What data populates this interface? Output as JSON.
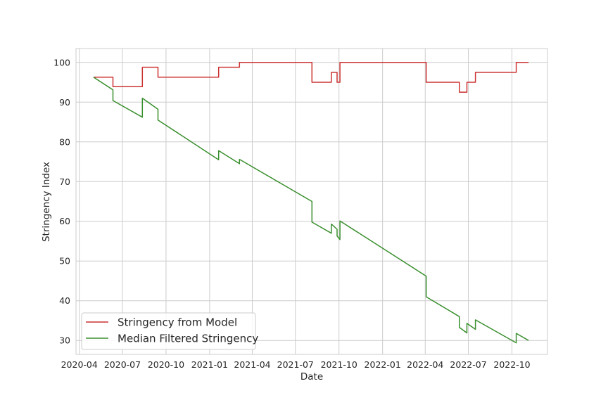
{
  "chart_data": {
    "type": "line",
    "title": "",
    "xlabel": "Date",
    "ylabel": "Stringency Index",
    "x_ticks": [
      "2020-04",
      "2020-07",
      "2020-10",
      "2021-01",
      "2021-04",
      "2021-07",
      "2021-10",
      "2022-01",
      "2022-04",
      "2022-07",
      "2022-10"
    ],
    "y_ticks": [
      30,
      40,
      50,
      60,
      70,
      80,
      90,
      100
    ],
    "xlim": [
      "2020-03-25",
      "2022-12-15"
    ],
    "ylim": [
      26.5,
      103.5
    ],
    "grid": true,
    "legend_position": "lower-left",
    "series": [
      {
        "name": "Stringency from Model",
        "color": "#cc3333",
        "points": [
          [
            "2020-05-01",
            96.3
          ],
          [
            "2020-06-11",
            96.3
          ],
          [
            "2020-06-11",
            93.9
          ],
          [
            "2020-08-12",
            93.9
          ],
          [
            "2020-08-12",
            98.8
          ],
          [
            "2020-09-14",
            98.8
          ],
          [
            "2020-09-14",
            96.3
          ],
          [
            "2021-01-20",
            96.3
          ],
          [
            "2021-01-20",
            98.8
          ],
          [
            "2021-03-05",
            98.8
          ],
          [
            "2021-03-05",
            100
          ],
          [
            "2021-08-05",
            100
          ],
          [
            "2021-08-05",
            95.0
          ],
          [
            "2021-09-15",
            95.0
          ],
          [
            "2021-09-15",
            97.5
          ],
          [
            "2021-09-27",
            97.5
          ],
          [
            "2021-09-27",
            95.0
          ],
          [
            "2021-10-03",
            95.0
          ],
          [
            "2021-10-03",
            100
          ],
          [
            "2022-04-03",
            100
          ],
          [
            "2022-04-03",
            95.0
          ],
          [
            "2022-06-12",
            95.0
          ],
          [
            "2022-06-12",
            92.5
          ],
          [
            "2022-06-28",
            92.5
          ],
          [
            "2022-06-28",
            95.0
          ],
          [
            "2022-07-16",
            95.0
          ],
          [
            "2022-07-16",
            97.5
          ],
          [
            "2022-10-10",
            97.5
          ],
          [
            "2022-10-10",
            100
          ],
          [
            "2022-11-05",
            100
          ]
        ]
      },
      {
        "name": "Median Filtered Stringency",
        "color": "#3a8f2e",
        "points": [
          [
            "2020-05-01",
            96.3
          ],
          [
            "2020-06-11",
            93.1
          ],
          [
            "2020-06-11",
            90.4
          ],
          [
            "2020-08-12",
            86.2
          ],
          [
            "2020-08-12",
            91.0
          ],
          [
            "2020-09-14",
            88.2
          ],
          [
            "2020-09-14",
            85.5
          ],
          [
            "2021-01-20",
            75.5
          ],
          [
            "2021-01-20",
            77.8
          ],
          [
            "2021-03-05",
            74.5
          ],
          [
            "2021-03-05",
            75.6
          ],
          [
            "2021-08-05",
            65.0
          ],
          [
            "2021-08-05",
            59.8
          ],
          [
            "2021-09-15",
            57.0
          ],
          [
            "2021-09-15",
            59.3
          ],
          [
            "2021-09-27",
            58.0
          ],
          [
            "2021-09-27",
            56.3
          ],
          [
            "2021-10-03",
            55.4
          ],
          [
            "2021-10-03",
            60.1
          ],
          [
            "2022-04-03",
            46.2
          ],
          [
            "2022-04-03",
            41.0
          ],
          [
            "2022-06-12",
            36.0
          ],
          [
            "2022-06-12",
            33.3
          ],
          [
            "2022-06-28",
            31.9
          ],
          [
            "2022-06-28",
            34.3
          ],
          [
            "2022-07-16",
            32.8
          ],
          [
            "2022-07-16",
            35.2
          ],
          [
            "2022-10-10",
            29.4
          ],
          [
            "2022-10-10",
            31.8
          ],
          [
            "2022-11-05",
            30.0
          ]
        ]
      }
    ]
  }
}
